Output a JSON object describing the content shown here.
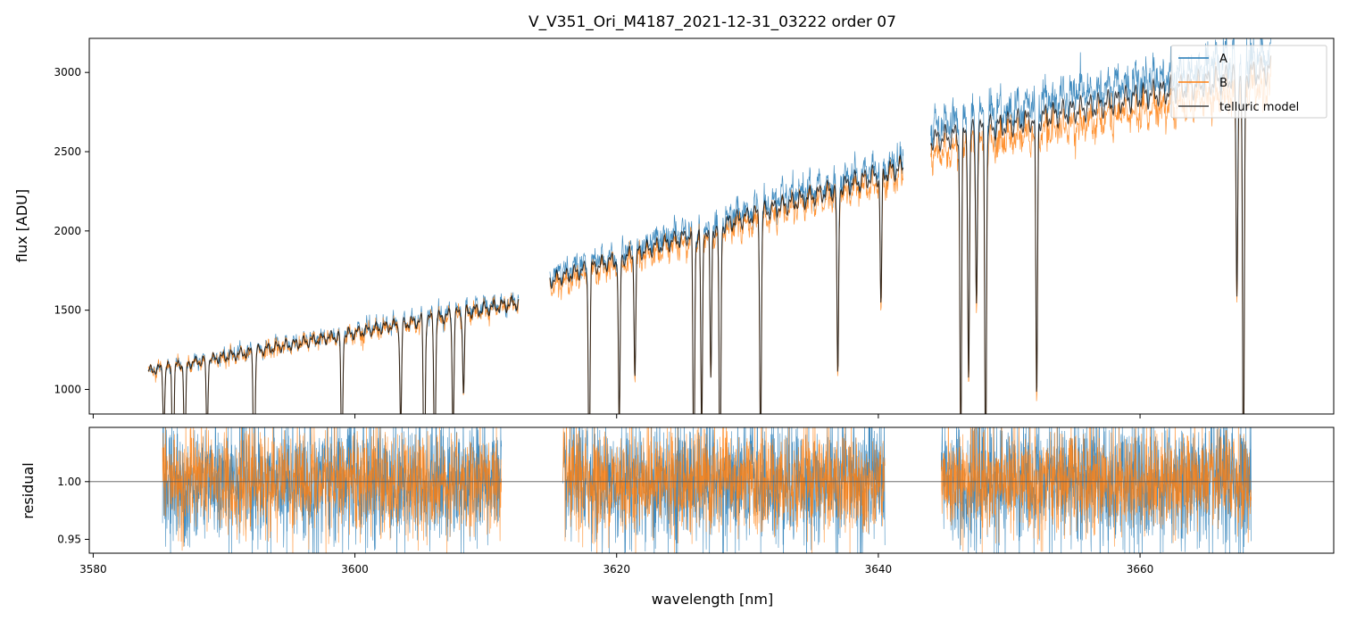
{
  "chart_data": [
    {
      "type": "line",
      "title": "V_V351_Ori_M4187_2021-12-31_03222  order 07",
      "xlabel": "",
      "ylabel": "flux [ADU]",
      "xlim": [
        3579.7,
        3674.8
      ],
      "ylim": [
        845,
        3215
      ],
      "yticks": [
        1000,
        1500,
        2000,
        2500,
        3000
      ],
      "ytick_labels": [
        "1000",
        "1500",
        "2000",
        "2500",
        "3000"
      ],
      "legend": {
        "position": "upper right",
        "entries": [
          "A",
          "B",
          "telluric model"
        ]
      },
      "segments": [
        {
          "x_start": 3584.2,
          "x_end": 3612.5,
          "flux_A_start": 1120,
          "flux_A_end": 1560,
          "flux_B_start": 1115,
          "flux_B_end": 1535
        },
        {
          "x_start": 3614.9,
          "x_end": 3641.9,
          "flux_A_start": 1720,
          "flux_A_end": 2450,
          "flux_B_start": 1650,
          "flux_B_end": 2360
        },
        {
          "x_start": 3644.0,
          "x_end": 3670.0,
          "flux_A_start": 2660,
          "flux_A_end": 3120,
          "flux_B_start": 2480,
          "flux_B_end": 2920
        }
      ],
      "absorption_lines_nm": [
        3585.4,
        3586.1,
        3587.0,
        3588.7,
        3592.3,
        3599.0,
        3603.5,
        3605.3,
        3606.1,
        3607.5,
        3608.3,
        3617.9,
        3620.2,
        3621.4,
        3625.9,
        3626.5,
        3627.2,
        3627.9,
        3631.0,
        3636.9,
        3640.2,
        3646.3,
        3646.9,
        3647.5,
        3648.2,
        3652.1,
        3667.4,
        3667.9
      ],
      "series": [
        {
          "name": "A",
          "color": "#1f77b4"
        },
        {
          "name": "B",
          "color": "#ff7f0e"
        },
        {
          "name": "telluric model",
          "color": "#000000"
        }
      ]
    },
    {
      "type": "line",
      "title": "",
      "xlabel": "wavelength [nm]",
      "ylabel": "residual",
      "xlim": [
        3579.7,
        3674.8
      ],
      "ylim": [
        0.938,
        1.047
      ],
      "yticks": [
        0.95,
        1.0
      ],
      "ytick_labels": [
        "0.95",
        "1.00"
      ],
      "xticks": [
        3580,
        3600,
        3620,
        3640,
        3660
      ],
      "xtick_labels": [
        "3580",
        "3600",
        "3620",
        "3640",
        "3660"
      ],
      "reference_line": 1.0,
      "segments": [
        {
          "x_start": 3585.3,
          "x_end": 3611.2
        },
        {
          "x_start": 3615.9,
          "x_end": 3640.5
        },
        {
          "x_start": 3644.8,
          "x_end": 3668.5
        }
      ],
      "series": [
        {
          "name": "A",
          "color": "#1f77b4",
          "center": 1.0,
          "spread": 0.028
        },
        {
          "name": "B",
          "color": "#ff7f0e",
          "center": 1.0,
          "spread": 0.022
        }
      ]
    }
  ]
}
